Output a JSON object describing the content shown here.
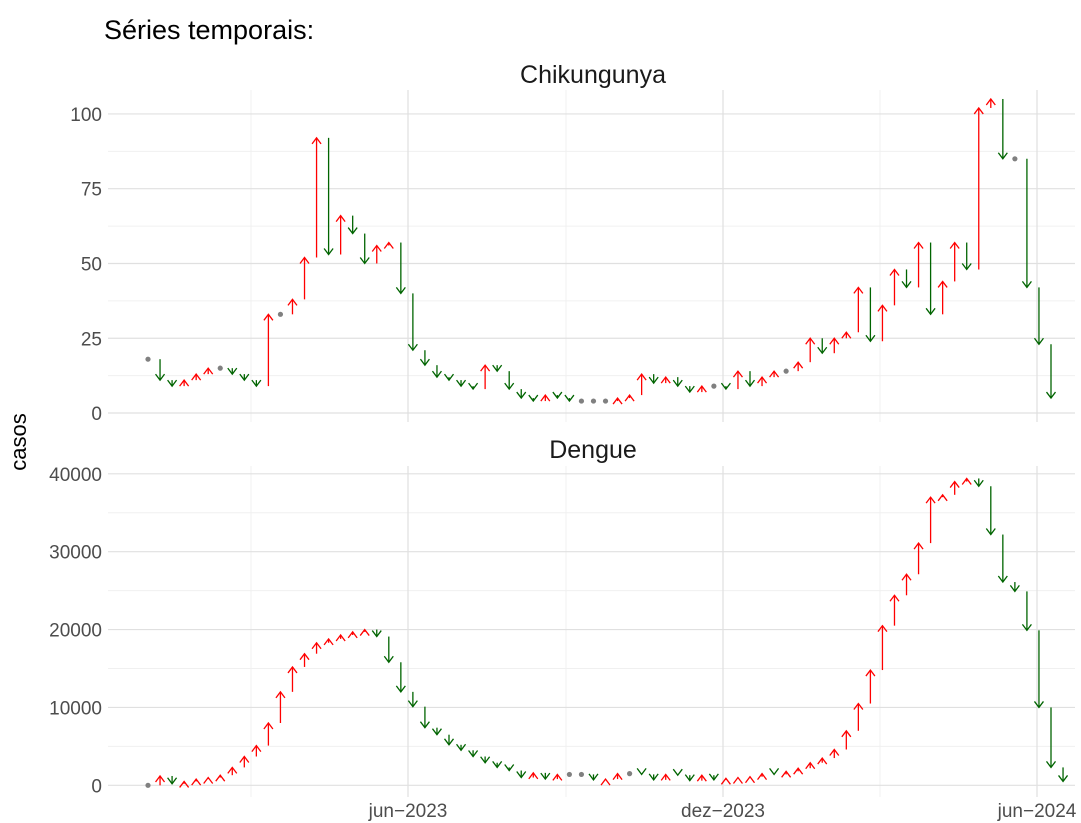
{
  "figure": {
    "title": "Séries temporais:",
    "ylabel": "casos"
  },
  "colors": {
    "up": "#ff0000",
    "down": "#006400",
    "flat": "#808080",
    "grid_major": "#e0e0e0",
    "grid_minor": "#f0f0f0"
  },
  "chart_data": [
    {
      "type": "line",
      "title": "Chikungunya",
      "ylabel": "casos",
      "ylim": [
        -3,
        108
      ],
      "yticks": [
        0,
        25,
        50,
        75,
        100
      ],
      "xticks": [
        "jun−2023",
        "dez−2023",
        "jun−2024"
      ],
      "values": [
        18,
        11,
        9,
        11,
        13,
        15,
        15,
        13,
        11,
        9,
        33,
        33,
        38,
        52,
        92,
        53,
        66,
        60,
        50,
        56,
        57,
        40,
        21,
        16,
        12,
        11,
        9,
        8,
        16,
        14,
        8,
        5,
        4,
        6,
        5,
        4,
        4,
        4,
        4,
        5,
        6,
        13,
        10,
        12,
        9,
        7,
        9,
        9,
        8,
        14,
        9,
        12,
        14,
        14,
        17,
        25,
        20,
        25,
        27,
        42,
        24,
        36,
        48,
        42,
        57,
        33,
        44,
        57,
        48,
        102,
        105,
        85,
        85,
        42,
        23,
        5
      ]
    },
    {
      "type": "line",
      "title": "Dengue",
      "ylabel": "casos",
      "ylim": [
        -1500,
        41000
      ],
      "yticks": [
        0,
        10000,
        20000,
        30000,
        40000
      ],
      "xticks": [
        "jun−2023",
        "dez−2023",
        "jun−2024"
      ],
      "values": [
        0,
        1200,
        200,
        500,
        800,
        1000,
        1300,
        2300,
        3700,
        5100,
        8000,
        12000,
        15200,
        16900,
        18300,
        18800,
        19300,
        19700,
        20000,
        19100,
        15800,
        12000,
        10100,
        7400,
        6500,
        5200,
        4500,
        3700,
        2900,
        2300,
        1900,
        1000,
        1600,
        800,
        1400,
        1400,
        1400,
        700,
        800,
        1500,
        1500,
        1400,
        700,
        1400,
        1300,
        600,
        1300,
        700,
        900,
        1000,
        1100,
        1500,
        1400,
        1800,
        2200,
        2900,
        3500,
        4600,
        7000,
        10500,
        14800,
        20500,
        24400,
        27100,
        31100,
        37000,
        37300,
        39000,
        39400,
        38400,
        32200,
        26100,
        24900,
        19900,
        10000,
        2300,
        500
      ]
    }
  ]
}
